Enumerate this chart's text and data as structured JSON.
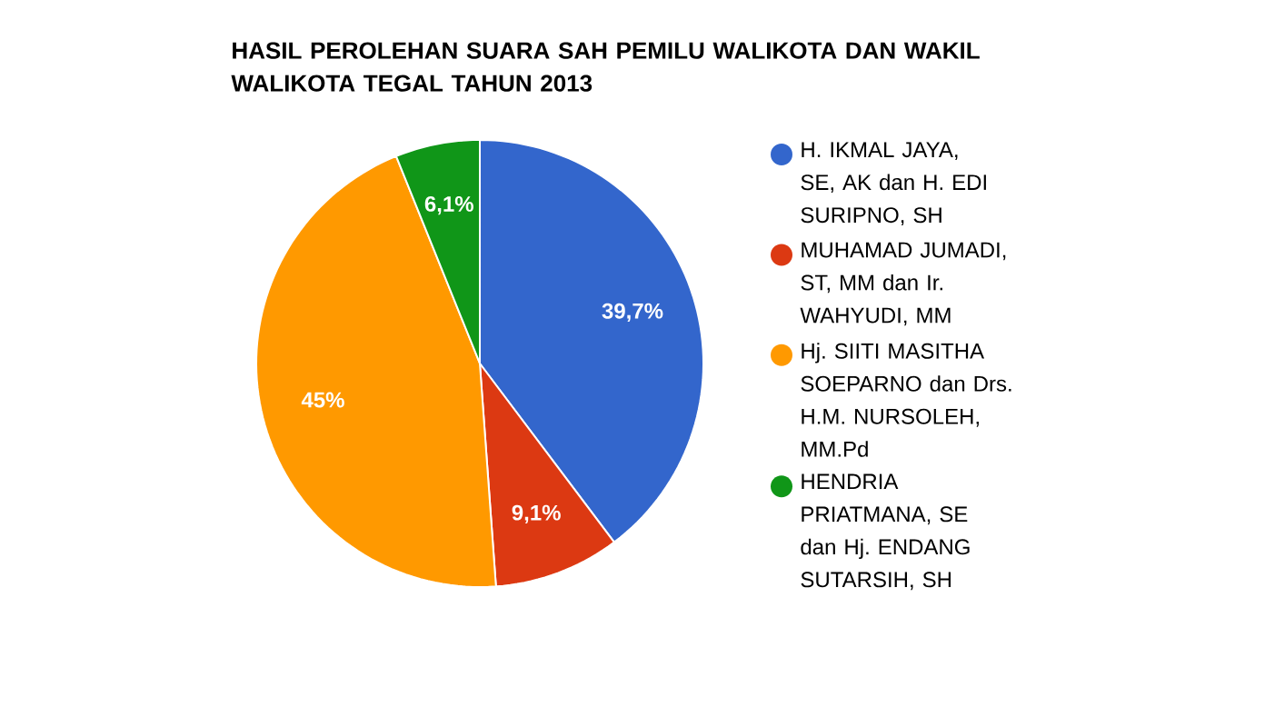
{
  "chart_data": {
    "type": "pie",
    "title": "HASIL PEROLEHAN SUARA SAH PEMILU WALIKOTA DAN WAKIL WALIKOTA TEGAL TAHUN 2013",
    "categories": [
      "H. IKMAL JAYA, SE, AK dan H. EDI SURIPNO, SH",
      "MUHAMAD JUMADI, ST, MM dan Ir. WAHYUDI, MM",
      "Hj. SIITI MASITHA SOEPARNO dan Drs. H.M. NURSOLEH, MM.Pd",
      "HENDRIA PRIATMANA, SE dan Hj. ENDANG SUTARSIH, SH"
    ],
    "values": [
      39.7,
      9.1,
      45,
      6.1
    ],
    "value_labels": [
      "39,7%",
      "9,1%",
      "45%",
      "6,1%"
    ],
    "colors": [
      "#3366cc",
      "#dc3912",
      "#ff9900",
      "#109618"
    ],
    "legend": "right"
  }
}
